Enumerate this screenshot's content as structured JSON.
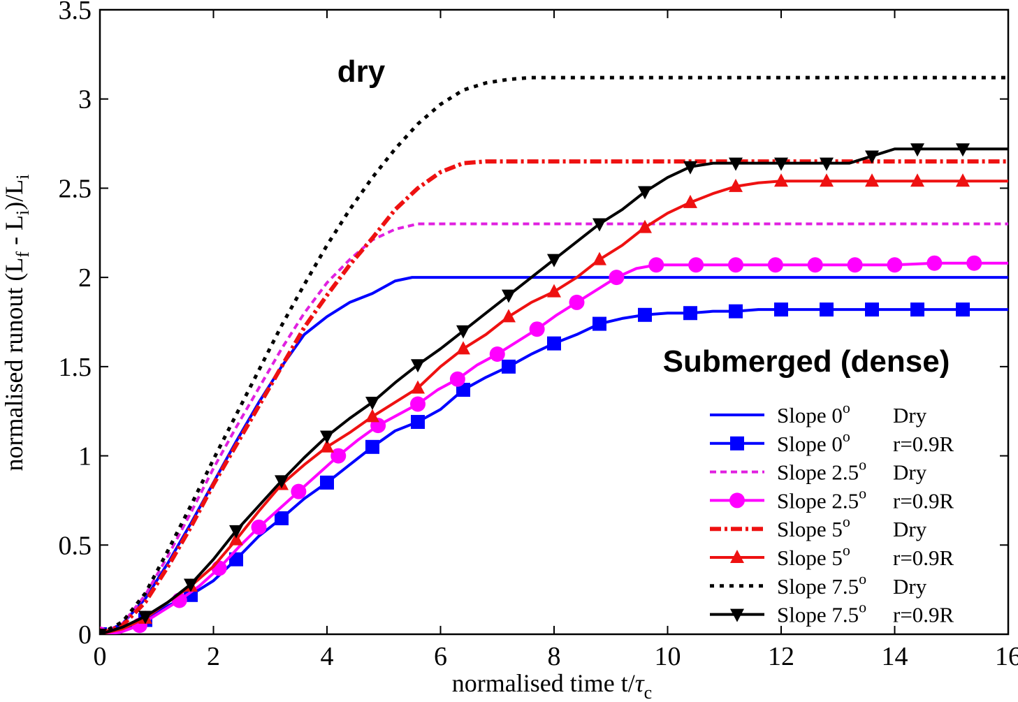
{
  "chart_data": {
    "type": "line",
    "xlabel": "normalised time t/τc",
    "ylabel": "normalised runout (Lf - Li)/Li",
    "xlim": [
      0,
      16
    ],
    "ylim": [
      0,
      3.5
    ],
    "xticks": [
      "0",
      "2",
      "4",
      "6",
      "8",
      "10",
      "12",
      "14",
      "16"
    ],
    "yticks": [
      "0",
      "0.5",
      "1",
      "1.5",
      "2",
      "2.5",
      "3",
      "3.5"
    ],
    "grid": false,
    "legend_position": "bottom-right",
    "annotations": [
      {
        "text": "dry",
        "x": 4.2,
        "y": 3.1
      },
      {
        "text": "Submerged (dense)",
        "x": 15.4,
        "y": 1.55
      }
    ],
    "series": [
      {
        "name": "Slope 0o Dry",
        "legend_slope": "Slope 0",
        "legend_cond": "Dry",
        "color": "#0000ff",
        "style": "solid",
        "marker": "none",
        "x": [
          0,
          0.4,
          0.8,
          1.2,
          1.6,
          2.0,
          2.4,
          2.8,
          3.2,
          3.6,
          4.0,
          4.4,
          4.8,
          5.2,
          5.5,
          6.0,
          8.0,
          10.0,
          12.0,
          14.0,
          16.0
        ],
        "y": [
          0,
          0.06,
          0.2,
          0.4,
          0.62,
          0.85,
          1.08,
          1.3,
          1.5,
          1.68,
          1.78,
          1.86,
          1.91,
          1.98,
          2.0,
          2.0,
          2.0,
          2.0,
          2.0,
          2.0,
          2.0
        ]
      },
      {
        "name": "Slope 0o r=0.9R",
        "legend_slope": "Slope 0",
        "legend_cond": "r=0.9R",
        "color": "#0000ff",
        "style": "solid",
        "marker": "square",
        "x": [
          0,
          0.4,
          0.8,
          1.2,
          1.6,
          2.0,
          2.4,
          2.8,
          3.2,
          3.6,
          4.0,
          4.4,
          4.8,
          5.2,
          5.6,
          6.0,
          6.4,
          6.8,
          7.2,
          7.6,
          8.0,
          8.4,
          8.8,
          9.2,
          9.6,
          10.0,
          10.4,
          10.8,
          11.2,
          11.6,
          12.0,
          12.4,
          12.8,
          13.2,
          13.6,
          14.0,
          14.4,
          14.8,
          15.2,
          15.6,
          16.0
        ],
        "y": [
          0,
          0.02,
          0.08,
          0.16,
          0.22,
          0.3,
          0.42,
          0.55,
          0.65,
          0.76,
          0.85,
          0.95,
          1.05,
          1.14,
          1.19,
          1.26,
          1.37,
          1.44,
          1.5,
          1.57,
          1.63,
          1.68,
          1.74,
          1.77,
          1.79,
          1.8,
          1.8,
          1.81,
          1.81,
          1.82,
          1.82,
          1.82,
          1.82,
          1.82,
          1.82,
          1.82,
          1.82,
          1.82,
          1.82,
          1.82,
          1.82
        ],
        "marker_x": [
          0,
          0.8,
          1.6,
          2.4,
          3.2,
          4.0,
          4.8,
          5.6,
          6.4,
          7.2,
          8.0,
          8.8,
          9.6,
          10.4,
          11.2,
          12.0,
          12.8,
          13.6,
          14.4,
          15.2
        ]
      },
      {
        "name": "Slope 2.5o Dry",
        "legend_slope": "Slope 2.5",
        "legend_cond": "Dry",
        "color": "#e020e0",
        "style": "dashed",
        "marker": "none",
        "x": [
          0,
          0.4,
          0.8,
          1.2,
          1.6,
          2.0,
          2.4,
          2.8,
          3.2,
          3.6,
          4.0,
          4.4,
          4.8,
          5.2,
          5.6,
          6.0,
          8.0,
          10.0,
          12.0,
          14.0,
          16.0
        ],
        "y": [
          0,
          0.06,
          0.22,
          0.44,
          0.68,
          0.93,
          1.16,
          1.38,
          1.6,
          1.8,
          1.97,
          2.1,
          2.21,
          2.27,
          2.3,
          2.3,
          2.3,
          2.3,
          2.3,
          2.3,
          2.3
        ]
      },
      {
        "name": "Slope 2.5o r=0.9R",
        "legend_slope": "Slope 2.5",
        "legend_cond": "r=0.9R",
        "color": "#ff00ff",
        "style": "solid",
        "marker": "circle",
        "x": [
          0,
          0.35,
          0.7,
          1.05,
          1.4,
          1.75,
          2.1,
          2.45,
          2.8,
          3.15,
          3.5,
          3.85,
          4.2,
          4.55,
          4.9,
          5.25,
          5.6,
          5.95,
          6.3,
          6.65,
          7.0,
          7.35,
          7.7,
          8.05,
          8.4,
          8.75,
          9.1,
          9.45,
          9.8,
          10.15,
          10.5,
          11.2,
          11.9,
          12.6,
          13.3,
          14.0,
          14.7,
          15.4,
          16.0
        ],
        "y": [
          0,
          0.01,
          0.05,
          0.12,
          0.19,
          0.27,
          0.37,
          0.49,
          0.6,
          0.7,
          0.8,
          0.9,
          1.0,
          1.09,
          1.17,
          1.23,
          1.29,
          1.37,
          1.43,
          1.51,
          1.57,
          1.64,
          1.71,
          1.79,
          1.86,
          1.93,
          2.0,
          2.05,
          2.07,
          2.07,
          2.07,
          2.07,
          2.07,
          2.07,
          2.07,
          2.07,
          2.08,
          2.08,
          2.08
        ],
        "marker_x": [
          0,
          0.7,
          1.4,
          2.1,
          2.8,
          3.5,
          4.2,
          4.9,
          5.6,
          6.3,
          7.0,
          7.7,
          8.4,
          9.1,
          9.8,
          10.5,
          11.2,
          11.9,
          12.6,
          13.3,
          14.0,
          14.7,
          15.4
        ]
      },
      {
        "name": "Slope 5o Dry",
        "legend_slope": "Slope 5",
        "legend_cond": "Dry",
        "color": "#ee1111",
        "style": "dashdot",
        "marker": "none",
        "x": [
          0,
          0.4,
          0.8,
          1.2,
          1.6,
          2.0,
          2.4,
          2.8,
          3.2,
          3.6,
          4.0,
          4.4,
          4.8,
          5.2,
          5.6,
          6.0,
          6.4,
          6.8,
          8.0,
          10.0,
          12.0,
          14.0,
          16.0
        ],
        "y": [
          0,
          0.05,
          0.18,
          0.38,
          0.6,
          0.84,
          1.06,
          1.28,
          1.5,
          1.72,
          1.9,
          2.07,
          2.22,
          2.38,
          2.5,
          2.59,
          2.64,
          2.65,
          2.65,
          2.65,
          2.65,
          2.65,
          2.65
        ]
      },
      {
        "name": "Slope 5o r=0.9R",
        "legend_slope": "Slope 5",
        "legend_cond": "r=0.9R",
        "color": "#ee1111",
        "style": "solid",
        "marker": "triangle-up",
        "x": [
          0,
          0.4,
          0.8,
          1.2,
          1.6,
          2.0,
          2.4,
          2.8,
          3.2,
          3.6,
          4.0,
          4.4,
          4.8,
          5.2,
          5.6,
          6.0,
          6.4,
          6.8,
          7.2,
          7.6,
          8.0,
          8.4,
          8.8,
          9.2,
          9.6,
          10.0,
          10.4,
          10.8,
          11.2,
          11.6,
          12.0,
          12.4,
          12.8,
          13.2,
          13.6,
          14.0,
          14.4,
          14.8,
          15.2,
          15.6,
          16.0
        ],
        "y": [
          0,
          0.03,
          0.09,
          0.18,
          0.27,
          0.38,
          0.53,
          0.69,
          0.84,
          0.95,
          1.05,
          1.13,
          1.22,
          1.3,
          1.38,
          1.5,
          1.6,
          1.68,
          1.78,
          1.86,
          1.92,
          2.0,
          2.1,
          2.18,
          2.28,
          2.36,
          2.42,
          2.47,
          2.51,
          2.53,
          2.54,
          2.54,
          2.54,
          2.54,
          2.54,
          2.54,
          2.54,
          2.54,
          2.54,
          2.54,
          2.54
        ],
        "marker_x": [
          0,
          0.8,
          1.6,
          2.4,
          3.2,
          4.0,
          4.8,
          5.6,
          6.4,
          7.2,
          8.0,
          8.8,
          9.6,
          10.4,
          11.2,
          12.0,
          12.8,
          13.6,
          14.4,
          15.2
        ]
      },
      {
        "name": "Slope 7.5o Dry",
        "legend_slope": "Slope 7.5",
        "legend_cond": "Dry",
        "color": "#000000",
        "style": "dotted",
        "marker": "none",
        "x": [
          0,
          0.4,
          0.8,
          1.2,
          1.6,
          2.0,
          2.4,
          2.8,
          3.2,
          3.6,
          4.0,
          4.4,
          4.8,
          5.2,
          5.6,
          6.0,
          6.4,
          6.8,
          7.2,
          7.6,
          8.0,
          10.0,
          12.0,
          14.0,
          16.0
        ],
        "y": [
          0,
          0.07,
          0.23,
          0.47,
          0.72,
          0.98,
          1.23,
          1.48,
          1.73,
          1.96,
          2.18,
          2.38,
          2.56,
          2.72,
          2.86,
          2.97,
          3.05,
          3.09,
          3.11,
          3.12,
          3.12,
          3.12,
          3.12,
          3.12,
          3.12
        ]
      },
      {
        "name": "Slope 7.5o r=0.9R",
        "legend_slope": "Slope 7.5",
        "legend_cond": "r=0.9R",
        "color": "#000000",
        "style": "solid",
        "marker": "triangle-down",
        "x": [
          0,
          0.4,
          0.8,
          1.2,
          1.6,
          2.0,
          2.4,
          2.8,
          3.2,
          3.6,
          4.0,
          4.4,
          4.8,
          5.2,
          5.6,
          6.0,
          6.4,
          6.8,
          7.2,
          7.6,
          8.0,
          8.4,
          8.8,
          9.2,
          9.6,
          10.0,
          10.4,
          10.8,
          11.2,
          11.6,
          12.0,
          12.4,
          12.8,
          13.2,
          13.6,
          14.0,
          14.4,
          14.8,
          15.2,
          15.6,
          16.0
        ],
        "y": [
          0,
          0.04,
          0.1,
          0.18,
          0.28,
          0.42,
          0.58,
          0.72,
          0.86,
          0.99,
          1.11,
          1.21,
          1.3,
          1.41,
          1.51,
          1.6,
          1.7,
          1.8,
          1.9,
          2.0,
          2.1,
          2.2,
          2.3,
          2.38,
          2.48,
          2.56,
          2.62,
          2.64,
          2.64,
          2.64,
          2.64,
          2.64,
          2.64,
          2.64,
          2.68,
          2.72,
          2.72,
          2.72,
          2.72,
          2.72,
          2.72
        ],
        "marker_x": [
          0,
          0.8,
          1.6,
          2.4,
          3.2,
          4.0,
          4.8,
          5.6,
          6.4,
          7.2,
          8.0,
          8.8,
          9.6,
          10.4,
          11.2,
          12.0,
          12.8,
          13.6,
          14.4,
          15.2
        ]
      }
    ]
  }
}
